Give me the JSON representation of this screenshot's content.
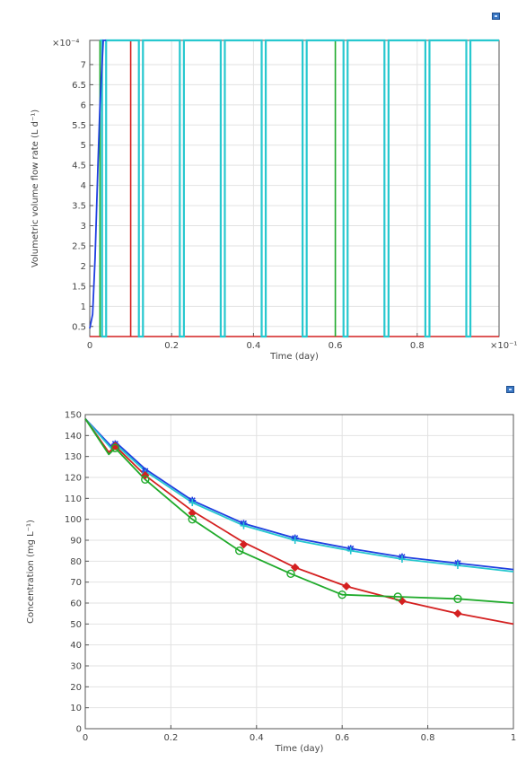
{
  "colors": {
    "blue": "#1f3fe0",
    "red": "#d42020",
    "green": "#1faa2a",
    "cyan": "#27c8cf",
    "grid": "#e2e2e2",
    "axis": "#555555"
  },
  "icons": [
    "export-plot-icon",
    "export-plot-icon"
  ],
  "chart_data": [
    {
      "type": "line",
      "xlabel": "Time (day)",
      "ylabel": "Volumetric volume flow rate (L d⁻¹)",
      "x_multiplier": "×10⁻¹",
      "y_multiplier": "×10⁻⁴",
      "xlim": [
        0,
        1
      ],
      "ylim": [
        0.25,
        7.6
      ],
      "xticks": [
        0,
        0.2,
        0.4,
        0.6,
        0.8
      ],
      "xtick_labels": [
        "0",
        "0.2",
        "0.4",
        "0.6",
        "0.8"
      ],
      "yticks": [
        0.5,
        1,
        1.5,
        2,
        2.5,
        3,
        3.5,
        4,
        4.5,
        5,
        5.5,
        6,
        6.5,
        7
      ],
      "ytick_labels": [
        "0.5",
        "1",
        "1.5",
        "2",
        "2.5",
        "3",
        "3.5",
        "4",
        "4.5",
        "5",
        "5.5",
        "6",
        "6.5",
        "7"
      ],
      "grid": true,
      "low_value": 0.25,
      "high_value": 7.6,
      "series": [
        {
          "color": "blue",
          "points": [
            [
              0,
              0.45
            ],
            [
              0.007,
              0.8
            ],
            [
              0.013,
              2.2
            ],
            [
              0.02,
              4.5
            ],
            [
              0.025,
              6.0
            ],
            [
              0.03,
              7.0
            ],
            [
              0.033,
              7.6
            ],
            [
              0.04,
              7.6
            ]
          ]
        },
        {
          "color": "red",
          "segments": [
            [
              0,
              0.1,
              "low"
            ],
            [
              0.1,
              1.0,
              "low"
            ]
          ],
          "spikes": [
            0.1
          ]
        },
        {
          "color": "green",
          "segments": [
            [
              0,
              0.025,
              "low"
            ]
          ],
          "spikes": [
            0.025,
            0.6
          ]
        },
        {
          "color": "cyan",
          "high_from": 0.025,
          "pulses": [
            [
              0.03,
              0.04
            ],
            [
              0.12,
              0.13
            ],
            [
              0.22,
              0.23
            ],
            [
              0.32,
              0.33
            ],
            [
              0.42,
              0.43
            ],
            [
              0.52,
              0.53
            ],
            [
              0.62,
              0.63
            ],
            [
              0.72,
              0.73
            ],
            [
              0.82,
              0.83
            ],
            [
              0.92,
              0.93
            ]
          ]
        }
      ]
    },
    {
      "type": "line",
      "xlabel": "Time (day)",
      "ylabel": "Concentration (mg L⁻¹)",
      "xlim": [
        0,
        1
      ],
      "ylim": [
        0,
        150
      ],
      "xticks": [
        0,
        0.2,
        0.4,
        0.6,
        0.8,
        1
      ],
      "xtick_labels": [
        "0",
        "0.2",
        "0.4",
        "0.6",
        "0.8",
        "1"
      ],
      "yticks": [
        0,
        10,
        20,
        30,
        40,
        50,
        60,
        70,
        80,
        90,
        100,
        110,
        120,
        130,
        140,
        150
      ],
      "ytick_labels": [
        "0",
        "10",
        "20",
        "30",
        "40",
        "50",
        "60",
        "70",
        "80",
        "90",
        "100",
        "110",
        "120",
        "130",
        "140",
        "150"
      ],
      "grid": true,
      "series": [
        {
          "color": "blue",
          "marker": "star",
          "x": [
            0,
            0.06,
            0.07,
            0.14,
            0.25,
            0.37,
            0.49,
            0.62,
            0.74,
            0.87,
            1.0
          ],
          "y": [
            148,
            135,
            137,
            124,
            109,
            98,
            91,
            86,
            82,
            79,
            76
          ],
          "marker_x": [
            0.07,
            0.14,
            0.25,
            0.37,
            0.49,
            0.62,
            0.74,
            0.87
          ],
          "marker_y": [
            136,
            123,
            109,
            98,
            91,
            86,
            82,
            79
          ]
        },
        {
          "color": "cyan",
          "marker": "plus",
          "x": [
            0,
            0.06,
            0.07,
            0.14,
            0.25,
            0.37,
            0.49,
            0.62,
            0.74,
            0.87,
            1.0
          ],
          "y": [
            148,
            134,
            136,
            123,
            108,
            97,
            90,
            85,
            81,
            78,
            75
          ],
          "marker_x": [
            0.07,
            0.14,
            0.25,
            0.37,
            0.49,
            0.62,
            0.74,
            0.87
          ],
          "marker_y": [
            135,
            122,
            108,
            97,
            90,
            85,
            81,
            78
          ]
        },
        {
          "color": "red",
          "marker": "diamond",
          "x": [
            0,
            0.055,
            0.07,
            0.14,
            0.25,
            0.37,
            0.49,
            0.61,
            0.74,
            0.87,
            1.0
          ],
          "y": [
            148,
            132,
            135,
            121,
            104,
            89,
            77,
            68,
            61,
            55,
            50
          ],
          "marker_x": [
            0.07,
            0.14,
            0.25,
            0.37,
            0.49,
            0.61,
            0.74,
            0.87
          ],
          "marker_y": [
            135,
            121,
            103,
            88,
            77,
            68,
            61,
            55
          ]
        },
        {
          "color": "green",
          "marker": "circle",
          "x": [
            0,
            0.055,
            0.07,
            0.14,
            0.25,
            0.36,
            0.48,
            0.6,
            0.73,
            0.87,
            1.0
          ],
          "y": [
            148,
            131,
            134,
            119,
            100,
            85,
            74,
            64,
            63,
            62,
            60
          ],
          "marker_x": [
            0.07,
            0.14,
            0.25,
            0.36,
            0.48,
            0.6,
            0.73,
            0.87
          ],
          "marker_y": [
            134,
            119,
            100,
            85,
            74,
            64,
            63,
            62
          ]
        }
      ]
    }
  ]
}
